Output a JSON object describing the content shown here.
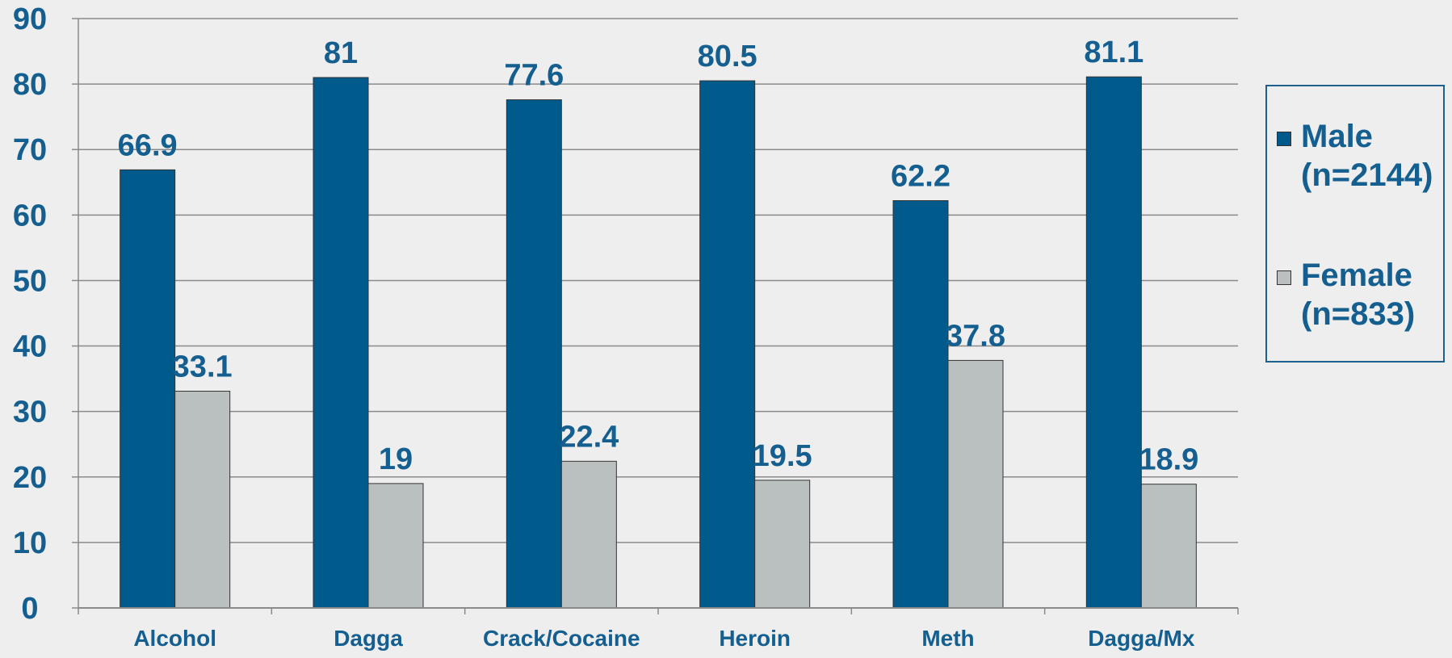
{
  "colors": {
    "background": "#eeeeee",
    "male": "#005a8c",
    "female": "#b9c0bf",
    "text": "#145f8f",
    "grid": "#8a8a8a"
  },
  "chart_data": {
    "type": "bar",
    "categories": [
      "Alcohol",
      "Dagga",
      "Crack/Cocaine",
      "Heroin",
      "Meth",
      "Dagga/Mx"
    ],
    "series": [
      {
        "name": "Male (n=2144)",
        "values": [
          66.9,
          81,
          77.6,
          80.5,
          62.2,
          81.1
        ]
      },
      {
        "name": "Female (n=833)",
        "values": [
          33.1,
          19,
          22.4,
          19.5,
          37.8,
          18.9
        ]
      }
    ],
    "data_labels": [
      [
        "66.9",
        "81",
        "77.6",
        "80.5",
        "62.2",
        "81.1"
      ],
      [
        "33.1",
        "19",
        "22.4",
        "19.5",
        "37.8",
        "18.9"
      ]
    ],
    "y_ticks": [
      "0",
      "10",
      "20",
      "30",
      "40",
      "50",
      "60",
      "70",
      "80",
      "90"
    ],
    "ylim": [
      0,
      90
    ],
    "grid": true,
    "legend_position": "right",
    "title": "",
    "xlabel": "",
    "ylabel": ""
  },
  "legend": {
    "items": [
      {
        "line1": "Male",
        "line2": "(n=2144)"
      },
      {
        "line1": "Female",
        "line2": "(n=833)"
      }
    ]
  }
}
